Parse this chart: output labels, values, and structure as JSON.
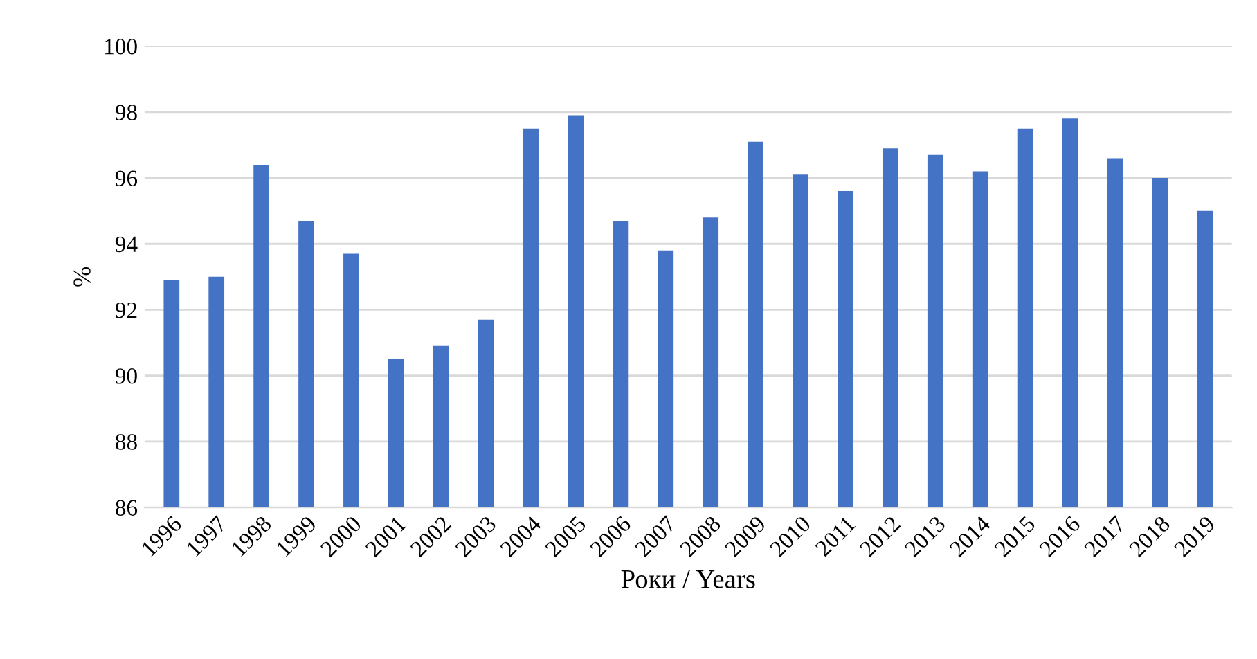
{
  "chart_data": {
    "type": "bar",
    "xlabel": "Роки / Years",
    "ylabel": "%",
    "categories": [
      "1996",
      "1997",
      "1998",
      "1999",
      "2000",
      "2001",
      "2002",
      "2003",
      "2004",
      "2005",
      "2006",
      "2007",
      "2008",
      "2009",
      "2010",
      "2011",
      "2012",
      "2013",
      "2014",
      "2015",
      "2016",
      "2017",
      "2018",
      "2019"
    ],
    "values": [
      92.9,
      93.0,
      96.4,
      94.7,
      93.7,
      90.5,
      90.9,
      91.7,
      97.5,
      97.9,
      94.7,
      93.8,
      94.8,
      97.1,
      96.1,
      95.6,
      96.9,
      96.7,
      96.2,
      97.5,
      97.8,
      96.6,
      96.0,
      95.0
    ],
    "color": "#4472c4",
    "ylim": [
      86,
      100
    ],
    "yticks": [
      86,
      88,
      90,
      92,
      94,
      96,
      98,
      100
    ],
    "grid": "y"
  }
}
